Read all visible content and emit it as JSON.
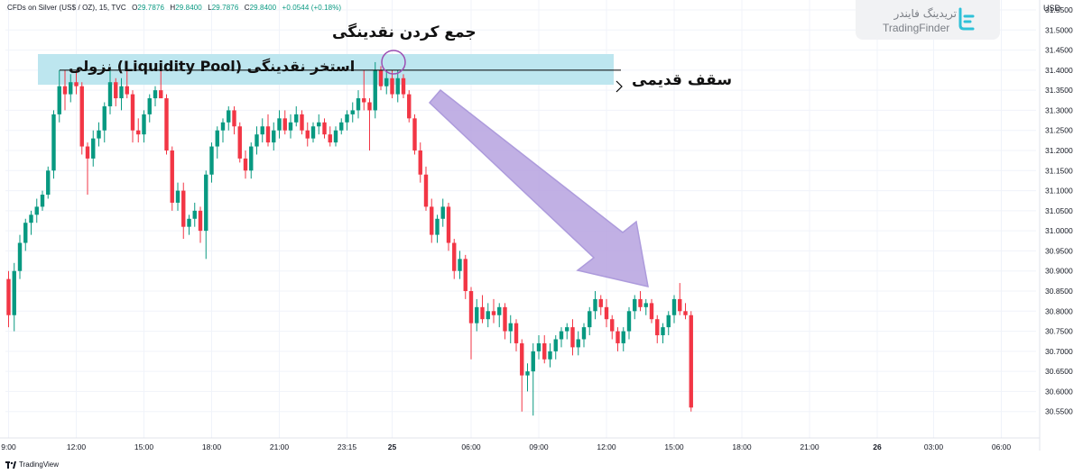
{
  "header": {
    "symbol": "CFDs on Silver (US$ / OZ), 15, TVC",
    "open_label": "O",
    "open": "29.7876",
    "high_label": "H",
    "high": "29.8400",
    "low_label": "L",
    "low": "29.7876",
    "close_label": "C",
    "close": "29.8400",
    "change": "+0.0544 (+0.18%)"
  },
  "brand": {
    "name_fa": "تریدینگ فایندر",
    "name_en": "TradingFinder",
    "logo_icon": "tradingfinder-logo-icon"
  },
  "currency": "USD",
  "footer": {
    "brand": "TradingView",
    "logo_icon": "tradingview-logo-icon"
  },
  "annotations": {
    "liquidity_grab": "جمع کردن نقدینگی",
    "liquidity_pool": "استخر نقدینگی (Liquidity Pool) نزولی",
    "old_ceiling": "سقف قدیمی"
  },
  "colors": {
    "up": "#089981",
    "down": "#f23645",
    "pool_zone": "#bde6ef",
    "arrow_fill": "#b7a3e0",
    "arrow_stroke": "#9f8ad6",
    "circle": "#9c4fb3",
    "grid": "#f0f3fa"
  },
  "chart_data": {
    "type": "candlestick",
    "ylim": [
      30.5,
      31.55
    ],
    "y_ticks": [
      "31.5500",
      "31.5000",
      "31.4500",
      "31.4000",
      "31.3500",
      "31.3000",
      "31.2500",
      "31.2000",
      "31.1500",
      "31.1000",
      "31.0500",
      "31.0000",
      "30.9500",
      "30.9000",
      "30.8500",
      "30.8000",
      "30.7500",
      "30.7000",
      "30.6500",
      "30.6000",
      "30.5500"
    ],
    "x_ticks": [
      "9:00",
      "12:00",
      "15:00",
      "18:00",
      "21:00",
      "23:15",
      "25",
      "06:00",
      "09:00",
      "12:00",
      "15:00",
      "18:00",
      "21:00",
      "26",
      "03:00",
      "06:00"
    ],
    "x_tick_pos": [
      0,
      12,
      24,
      36,
      48,
      60,
      68,
      82,
      94,
      106,
      118,
      130,
      142,
      154,
      164,
      176
    ],
    "candles": [
      [
        30.88,
        30.9,
        30.76,
        30.79
      ],
      [
        30.79,
        30.92,
        30.75,
        30.9
      ],
      [
        30.9,
        30.99,
        30.88,
        30.97
      ],
      [
        30.97,
        31.03,
        30.95,
        31.02
      ],
      [
        31.02,
        31.05,
        30.99,
        31.04
      ],
      [
        31.04,
        31.08,
        31.02,
        31.06
      ],
      [
        31.06,
        31.1,
        31.05,
        31.09
      ],
      [
        31.09,
        31.16,
        31.08,
        31.15
      ],
      [
        31.15,
        31.3,
        31.13,
        31.29
      ],
      [
        31.29,
        31.4,
        31.27,
        31.36
      ],
      [
        31.36,
        31.4,
        31.3,
        31.34
      ],
      [
        31.34,
        31.39,
        31.32,
        31.37
      ],
      [
        31.37,
        31.4,
        31.34,
        31.36
      ],
      [
        31.36,
        31.37,
        31.19,
        31.21
      ],
      [
        31.21,
        31.22,
        31.09,
        31.18
      ],
      [
        31.18,
        31.25,
        31.16,
        31.23
      ],
      [
        31.23,
        31.27,
        31.21,
        31.25
      ],
      [
        31.25,
        31.32,
        31.22,
        31.31
      ],
      [
        31.31,
        31.4,
        31.29,
        31.37
      ],
      [
        31.37,
        31.38,
        31.31,
        31.33
      ],
      [
        31.33,
        31.38,
        31.3,
        31.36
      ],
      [
        31.36,
        31.4,
        31.33,
        31.34
      ],
      [
        31.34,
        31.35,
        31.22,
        31.25
      ],
      [
        31.25,
        31.28,
        31.22,
        31.24
      ],
      [
        31.24,
        31.3,
        31.22,
        31.29
      ],
      [
        31.29,
        31.34,
        31.27,
        31.33
      ],
      [
        31.33,
        31.36,
        31.31,
        31.35
      ],
      [
        31.35,
        31.4,
        31.33,
        31.33
      ],
      [
        31.33,
        31.34,
        31.19,
        31.2
      ],
      [
        31.2,
        31.21,
        31.05,
        31.07
      ],
      [
        31.07,
        31.12,
        31.05,
        31.1
      ],
      [
        31.1,
        31.12,
        30.98,
        31.01
      ],
      [
        31.01,
        31.04,
        30.99,
        31.03
      ],
      [
        31.03,
        31.07,
        31.01,
        31.05
      ],
      [
        31.05,
        31.06,
        30.97,
        31.0
      ],
      [
        31.0,
        31.15,
        30.93,
        31.14
      ],
      [
        31.14,
        31.22,
        31.12,
        31.21
      ],
      [
        31.21,
        31.26,
        31.18,
        31.25
      ],
      [
        31.25,
        31.28,
        31.22,
        31.27
      ],
      [
        31.27,
        31.31,
        31.25,
        31.3
      ],
      [
        31.3,
        31.31,
        31.24,
        31.26
      ],
      [
        31.26,
        31.27,
        31.17,
        31.18
      ],
      [
        31.18,
        31.2,
        31.13,
        31.15
      ],
      [
        31.15,
        31.22,
        31.13,
        31.21
      ],
      [
        31.21,
        31.26,
        31.19,
        31.24
      ],
      [
        31.24,
        31.28,
        31.22,
        31.26
      ],
      [
        31.26,
        31.29,
        31.21,
        31.22
      ],
      [
        31.22,
        31.27,
        31.2,
        31.25
      ],
      [
        31.25,
        31.3,
        31.23,
        31.28
      ],
      [
        31.28,
        31.3,
        31.24,
        31.25
      ],
      [
        31.25,
        31.29,
        31.23,
        31.27
      ],
      [
        31.27,
        31.31,
        31.26,
        31.29
      ],
      [
        31.29,
        31.3,
        31.24,
        31.25
      ],
      [
        31.25,
        31.27,
        31.21,
        31.23
      ],
      [
        31.23,
        31.27,
        31.22,
        31.26
      ],
      [
        31.26,
        31.29,
        31.24,
        31.27
      ],
      [
        31.27,
        31.28,
        31.23,
        31.24
      ],
      [
        31.24,
        31.26,
        31.21,
        31.22
      ],
      [
        31.22,
        31.26,
        31.21,
        31.25
      ],
      [
        31.25,
        31.28,
        31.24,
        31.27
      ],
      [
        31.27,
        31.3,
        31.25,
        31.29
      ],
      [
        31.29,
        31.32,
        31.27,
        31.3
      ],
      [
        31.3,
        31.35,
        31.28,
        31.33
      ],
      [
        31.33,
        31.4,
        31.3,
        31.32
      ],
      [
        31.32,
        31.33,
        31.2,
        31.3
      ],
      [
        31.3,
        31.42,
        31.28,
        31.4
      ],
      [
        31.4,
        31.41,
        31.35,
        31.36
      ],
      [
        31.36,
        31.4,
        31.34,
        31.38
      ],
      [
        31.38,
        31.4,
        31.33,
        31.34
      ],
      [
        31.34,
        31.4,
        31.32,
        31.38
      ],
      [
        31.38,
        31.39,
        31.33,
        31.34
      ],
      [
        31.34,
        31.35,
        31.27,
        31.28
      ],
      [
        31.28,
        31.29,
        31.19,
        31.2
      ],
      [
        31.2,
        31.22,
        31.12,
        31.14
      ],
      [
        31.14,
        31.16,
        31.05,
        31.06
      ],
      [
        31.06,
        31.08,
        30.97,
        30.99
      ],
      [
        30.99,
        31.04,
        30.97,
        31.03
      ],
      [
        31.03,
        31.08,
        31.01,
        31.06
      ],
      [
        31.06,
        31.07,
        30.95,
        30.97
      ],
      [
        30.97,
        30.98,
        30.88,
        30.9
      ],
      [
        30.9,
        30.95,
        30.88,
        30.93
      ],
      [
        30.93,
        30.94,
        30.83,
        30.85
      ],
      [
        30.85,
        30.86,
        30.68,
        30.77
      ],
      [
        30.77,
        30.83,
        30.75,
        30.81
      ],
      [
        30.81,
        30.84,
        30.77,
        30.78
      ],
      [
        30.78,
        30.82,
        30.76,
        30.8
      ],
      [
        30.8,
        30.83,
        30.77,
        30.79
      ],
      [
        30.79,
        30.82,
        30.76,
        30.81
      ],
      [
        30.81,
        30.82,
        30.73,
        30.75
      ],
      [
        30.75,
        30.79,
        30.72,
        30.77
      ],
      [
        30.77,
        30.78,
        30.7,
        30.72
      ],
      [
        30.72,
        30.73,
        30.55,
        30.64
      ],
      [
        30.64,
        30.67,
        30.6,
        30.65
      ],
      [
        30.65,
        30.72,
        30.54,
        30.7
      ],
      [
        30.7,
        30.74,
        30.68,
        30.72
      ],
      [
        30.72,
        30.74,
        30.67,
        30.68
      ],
      [
        30.68,
        30.72,
        30.66,
        30.7
      ],
      [
        30.7,
        30.74,
        30.68,
        30.73
      ],
      [
        30.73,
        30.76,
        30.71,
        30.75
      ],
      [
        30.75,
        30.77,
        30.73,
        30.76
      ],
      [
        30.76,
        30.78,
        30.69,
        30.71
      ],
      [
        30.71,
        30.75,
        30.69,
        30.73
      ],
      [
        30.73,
        30.77,
        30.71,
        30.76
      ],
      [
        30.76,
        30.81,
        30.74,
        30.8
      ],
      [
        30.8,
        30.85,
        30.78,
        30.83
      ],
      [
        30.83,
        30.84,
        30.79,
        30.81
      ],
      [
        30.81,
        30.83,
        30.76,
        30.78
      ],
      [
        30.78,
        30.79,
        30.73,
        30.75
      ],
      [
        30.75,
        30.76,
        30.7,
        30.72
      ],
      [
        30.72,
        30.76,
        30.7,
        30.75
      ],
      [
        30.75,
        30.81,
        30.73,
        30.8
      ],
      [
        30.8,
        30.84,
        30.78,
        30.83
      ],
      [
        30.83,
        30.85,
        30.8,
        30.81
      ],
      [
        30.81,
        30.83,
        30.79,
        30.82
      ],
      [
        30.82,
        30.83,
        30.77,
        30.78
      ],
      [
        30.78,
        30.79,
        30.72,
        30.74
      ],
      [
        30.74,
        30.77,
        30.72,
        30.76
      ],
      [
        30.76,
        30.8,
        30.74,
        30.79
      ],
      [
        30.79,
        30.84,
        30.77,
        30.83
      ],
      [
        30.83,
        30.87,
        30.79,
        30.8
      ],
      [
        30.8,
        30.82,
        30.78,
        30.79
      ],
      [
        30.79,
        30.8,
        30.55,
        30.56
      ]
    ]
  }
}
